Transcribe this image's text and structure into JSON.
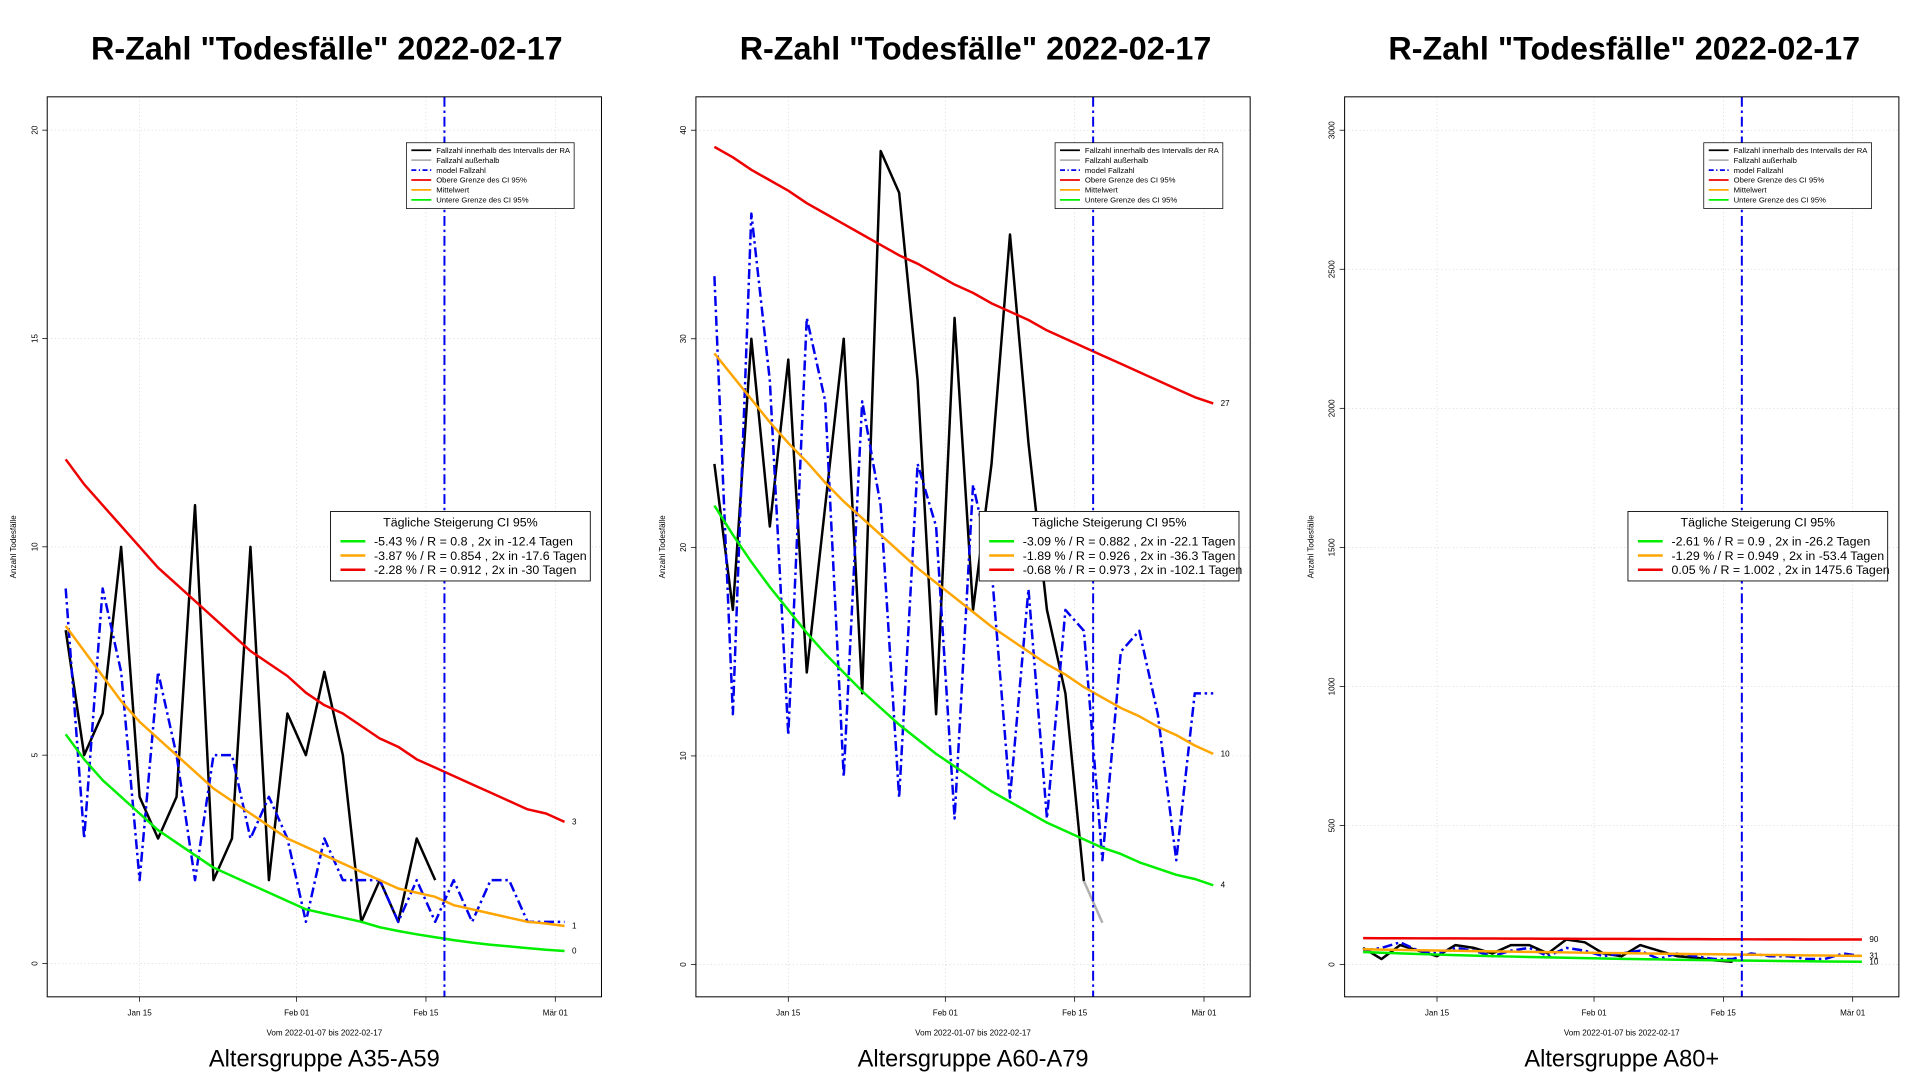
{
  "chart_data": [
    {
      "type": "line",
      "title": "R-Zahl \"Todesfälle\" 2022-02-17",
      "subtitle": "Altersgruppe A35-A59",
      "x_label": "Vom 2022-01-07 bis 2022-02-17",
      "y_label": "Anzahl Todesfälle",
      "x": [
        "2022-01-07",
        "2022-01-09",
        "2022-01-11",
        "2022-01-13",
        "2022-01-15",
        "2022-01-17",
        "2022-01-19",
        "2022-01-21",
        "2022-01-23",
        "2022-01-25",
        "2022-01-27",
        "2022-01-29",
        "2022-01-31",
        "2022-02-02",
        "2022-02-04",
        "2022-02-06",
        "2022-02-08",
        "2022-02-10",
        "2022-02-12",
        "2022-02-14",
        "2022-02-16",
        "2022-02-18",
        "2022-02-20",
        "2022-02-22",
        "2022-02-24",
        "2022-02-26",
        "2022-02-28",
        "2022-03-02"
      ],
      "xlim": [
        "2022-01-05",
        "2022-03-06"
      ],
      "xticks": [
        {
          "value": "2022-01-15",
          "label": "Jan 15"
        },
        {
          "value": "2022-02-01",
          "label": "Feb 01"
        },
        {
          "value": "2022-02-15",
          "label": "Feb 15"
        },
        {
          "value": "2022-03-01",
          "label": "Mär 01"
        }
      ],
      "ylim": [
        -0.8,
        20.8
      ],
      "yticks": [
        0,
        5,
        10,
        15,
        20
      ],
      "grid": true,
      "vline": "2022-02-17",
      "series": [
        {
          "name": "Fallzahl innerhalb des Intervalls der RA",
          "color": "#000000",
          "style": "solid",
          "values": [
            8,
            5,
            6,
            10,
            4,
            3,
            4,
            11,
            2,
            3,
            10,
            2,
            6,
            5,
            7,
            5,
            1,
            2,
            1,
            3,
            2,
            null,
            null,
            null,
            null,
            null,
            null,
            null
          ]
        },
        {
          "name": "Fallzahl außerhalb",
          "color": "#b0b0b0",
          "style": "solid",
          "values": [
            null,
            null,
            null,
            null,
            null,
            null,
            null,
            null,
            null,
            null,
            null,
            null,
            null,
            null,
            null,
            null,
            null,
            null,
            null,
            null,
            null,
            null,
            null,
            null,
            null,
            null,
            null,
            null
          ]
        },
        {
          "name": "model Fallzahl",
          "color": "#0000ee",
          "style": "dashdot",
          "values": [
            9,
            3,
            9,
            7,
            2,
            7,
            5,
            2,
            5,
            5,
            3,
            4,
            3,
            1,
            3,
            2,
            2,
            2,
            1,
            2,
            1,
            2,
            1,
            2,
            2,
            1,
            1,
            1
          ]
        },
        {
          "name": "Obere Grenze des CI 95%",
          "color": "#ee0000",
          "style": "solid",
          "end_label": "3",
          "values": [
            12.1,
            11.5,
            11.0,
            10.5,
            10.0,
            9.5,
            9.1,
            8.7,
            8.3,
            7.9,
            7.5,
            7.2,
            6.9,
            6.5,
            6.2,
            6.0,
            5.7,
            5.4,
            5.2,
            4.9,
            4.7,
            4.5,
            4.3,
            4.1,
            3.9,
            3.7,
            3.6,
            3.4
          ]
        },
        {
          "name": "Mittelwert",
          "color": "#ffa500",
          "style": "solid",
          "end_label": "1",
          "values": [
            8.1,
            7.5,
            6.9,
            6.3,
            5.8,
            5.4,
            5.0,
            4.6,
            4.2,
            3.9,
            3.6,
            3.3,
            3.0,
            2.8,
            2.6,
            2.4,
            2.2,
            2.0,
            1.8,
            1.7,
            1.6,
            1.4,
            1.3,
            1.2,
            1.1,
            1.0,
            0.96,
            0.9
          ]
        },
        {
          "name": "Untere Grenze des CI 95%",
          "color": "#00ee00",
          "style": "solid",
          "end_label": "0",
          "values": [
            5.5,
            4.9,
            4.4,
            4.0,
            3.6,
            3.2,
            2.9,
            2.6,
            2.3,
            2.1,
            1.9,
            1.7,
            1.5,
            1.3,
            1.2,
            1.1,
            1.0,
            0.87,
            0.78,
            0.7,
            0.63,
            0.56,
            0.5,
            0.45,
            0.41,
            0.37,
            0.33,
            0.3
          ]
        }
      ],
      "stats_title": "Tägliche Steigerung CI 95%",
      "stats": [
        {
          "text": "-5.43 % / R = 0.8 , 2x in -12.4 Tagen",
          "color": "#00ee00"
        },
        {
          "text": "-3.87 % / R = 0.854 , 2x in -17.6 Tagen",
          "color": "#ffa500"
        },
        {
          "text": "-2.28 % / R = 0.912 , 2x in -30 Tagen",
          "color": "#ee0000"
        }
      ]
    },
    {
      "type": "line",
      "title": "R-Zahl \"Todesfälle\" 2022-02-17",
      "subtitle": "Altersgruppe A60-A79",
      "x_label": "Vom 2022-01-07 bis 2022-02-17",
      "y_label": "Anzahl Todesfälle",
      "x": [
        "2022-01-07",
        "2022-01-09",
        "2022-01-11",
        "2022-01-13",
        "2022-01-15",
        "2022-01-17",
        "2022-01-19",
        "2022-01-21",
        "2022-01-23",
        "2022-01-25",
        "2022-01-27",
        "2022-01-29",
        "2022-01-31",
        "2022-02-02",
        "2022-02-04",
        "2022-02-06",
        "2022-02-08",
        "2022-02-10",
        "2022-02-12",
        "2022-02-14",
        "2022-02-16",
        "2022-02-18",
        "2022-02-20",
        "2022-02-22",
        "2022-02-24",
        "2022-02-26",
        "2022-02-28",
        "2022-03-02"
      ],
      "xlim": [
        "2022-01-05",
        "2022-03-06"
      ],
      "xticks": [
        {
          "value": "2022-01-15",
          "label": "Jan 15"
        },
        {
          "value": "2022-02-01",
          "label": "Feb 01"
        },
        {
          "value": "2022-02-15",
          "label": "Feb 15"
        },
        {
          "value": "2022-03-01",
          "label": "Mär 01"
        }
      ],
      "ylim": [
        -1.55,
        41.6
      ],
      "yticks": [
        0,
        10,
        20,
        30,
        40
      ],
      "grid": true,
      "vline": "2022-02-17",
      "series": [
        {
          "name": "Fallzahl innerhalb des Intervalls der RA",
          "color": "#000000",
          "style": "solid",
          "values": [
            24,
            17,
            30,
            21,
            29,
            14,
            22,
            30,
            13,
            39,
            37,
            28,
            12,
            31,
            17,
            24,
            35,
            25,
            17,
            13,
            4,
            null,
            null,
            null,
            null,
            null,
            null,
            null
          ]
        },
        {
          "name": "Fallzahl außerhalb",
          "color": "#b0b0b0",
          "style": "solid",
          "values": [
            null,
            null,
            null,
            null,
            null,
            null,
            null,
            null,
            null,
            null,
            null,
            null,
            null,
            null,
            null,
            null,
            null,
            null,
            null,
            null,
            4,
            2,
            null,
            null,
            null,
            null,
            null,
            null
          ]
        },
        {
          "name": "model Fallzahl",
          "color": "#0000ee",
          "style": "dashdot",
          "values": [
            33,
            12,
            36,
            28,
            11,
            31,
            27,
            9,
            27,
            22,
            8,
            24,
            21,
            7,
            23,
            19,
            8,
            18,
            7,
            17,
            16,
            5,
            15,
            16,
            12,
            5,
            13,
            13
          ]
        },
        {
          "name": "Obere Grenze des CI 95%",
          "color": "#ee0000",
          "style": "solid",
          "end_label": "27",
          "values": [
            39.2,
            38.7,
            38.1,
            37.6,
            37.1,
            36.5,
            36.0,
            35.5,
            35.0,
            34.5,
            34.0,
            33.6,
            33.1,
            32.6,
            32.2,
            31.7,
            31.3,
            30.9,
            30.4,
            30.0,
            29.6,
            29.2,
            28.8,
            28.4,
            28.0,
            27.6,
            27.2,
            26.9
          ]
        },
        {
          "name": "Mittelwert",
          "color": "#ffa500",
          "style": "solid",
          "end_label": "10",
          "values": [
            29.3,
            28.2,
            27.1,
            26.0,
            25.0,
            24.1,
            23.1,
            22.2,
            21.4,
            20.6,
            19.8,
            19.0,
            18.3,
            17.6,
            16.9,
            16.2,
            15.6,
            15.0,
            14.4,
            13.9,
            13.3,
            12.8,
            12.3,
            11.9,
            11.4,
            11.0,
            10.5,
            10.1
          ]
        },
        {
          "name": "Untere Grenze des CI 95%",
          "color": "#00ee00",
          "style": "solid",
          "end_label": "4",
          "values": [
            22.0,
            20.6,
            19.3,
            18.1,
            17.0,
            15.9,
            14.9,
            14.0,
            13.1,
            12.3,
            11.5,
            10.8,
            10.1,
            9.5,
            8.9,
            8.3,
            7.8,
            7.3,
            6.8,
            6.4,
            6.0,
            5.6,
            5.3,
            4.9,
            4.6,
            4.3,
            4.1,
            3.8
          ]
        }
      ],
      "stats_title": "Tägliche Steigerung CI 95%",
      "stats": [
        {
          "text": "-3.09 % / R = 0.882 , 2x in -22.1 Tagen",
          "color": "#00ee00"
        },
        {
          "text": "-1.89 % / R = 0.926 , 2x in -36.3 Tagen",
          "color": "#ffa500"
        },
        {
          "text": "-0.68 % / R = 0.973 , 2x in -102.1 Tagen",
          "color": "#ee0000"
        }
      ]
    },
    {
      "type": "line",
      "title": "R-Zahl \"Todesfälle\" 2022-02-17",
      "subtitle": "Altersgruppe A80+",
      "x_label": "Vom 2022-01-07 bis 2022-02-17",
      "y_label": "Anzahl Todesfälle",
      "x": [
        "2022-01-07",
        "2022-01-09",
        "2022-01-11",
        "2022-01-13",
        "2022-01-15",
        "2022-01-17",
        "2022-01-19",
        "2022-01-21",
        "2022-01-23",
        "2022-01-25",
        "2022-01-27",
        "2022-01-29",
        "2022-01-31",
        "2022-02-02",
        "2022-02-04",
        "2022-02-06",
        "2022-02-08",
        "2022-02-10",
        "2022-02-12",
        "2022-02-14",
        "2022-02-16",
        "2022-02-18",
        "2022-02-20",
        "2022-02-22",
        "2022-02-24",
        "2022-02-26",
        "2022-02-28",
        "2022-03-02"
      ],
      "xlim": [
        "2022-01-05",
        "2022-03-06"
      ],
      "xticks": [
        {
          "value": "2022-01-15",
          "label": "Jan 15"
        },
        {
          "value": "2022-02-01",
          "label": "Feb 01"
        },
        {
          "value": "2022-02-15",
          "label": "Feb 15"
        },
        {
          "value": "2022-03-01",
          "label": "Mär 01"
        }
      ],
      "ylim": [
        -116,
        3120
      ],
      "yticks": [
        0,
        500,
        1000,
        1500,
        2000,
        2500,
        3000
      ],
      "grid": true,
      "vline": "2022-02-17",
      "series": [
        {
          "name": "Fallzahl innerhalb des Intervalls der RA",
          "color": "#000000",
          "style": "solid",
          "values": [
            60,
            20,
            70,
            50,
            30,
            70,
            60,
            40,
            70,
            70,
            40,
            90,
            80,
            40,
            30,
            70,
            50,
            30,
            25,
            15,
            10,
            null,
            null,
            null,
            null,
            null,
            null,
            null
          ]
        },
        {
          "name": "Fallzahl außerhalb",
          "color": "#b0b0b0",
          "style": "solid",
          "values": [
            null,
            null,
            null,
            null,
            null,
            null,
            null,
            null,
            null,
            null,
            null,
            null,
            null,
            null,
            null,
            null,
            null,
            null,
            null,
            null,
            null,
            null,
            null,
            null,
            null,
            null,
            null,
            null
          ]
        },
        {
          "name": "model Fallzahl",
          "color": "#0000ee",
          "style": "dashdot",
          "values": [
            50,
            60,
            80,
            50,
            40,
            60,
            50,
            30,
            50,
            60,
            30,
            60,
            50,
            30,
            40,
            50,
            20,
            40,
            30,
            20,
            20,
            40,
            30,
            30,
            20,
            20,
            40,
            30
          ]
        },
        {
          "name": "Obere Grenze des CI 95%",
          "color": "#ee0000",
          "style": "solid",
          "end_label": "90",
          "values": [
            95,
            94.8,
            94.6,
            94.4,
            94.2,
            94.0,
            93.8,
            93.6,
            93.4,
            93.2,
            93.0,
            92.8,
            92.6,
            92.4,
            92.2,
            92.0,
            91.8,
            91.6,
            91.4,
            91.2,
            91.0,
            90.8,
            90.6,
            90.4,
            90.2,
            90.1,
            90.0,
            90.0
          ]
        },
        {
          "name": "Mittelwert",
          "color": "#ffa500",
          "style": "solid",
          "end_label": "31",
          "values": [
            55,
            53.8,
            52.7,
            51.6,
            50.6,
            49.5,
            48.5,
            47.5,
            46.5,
            45.5,
            44.6,
            43.6,
            42.7,
            41.8,
            41.0,
            40.1,
            39.3,
            38.5,
            37.7,
            36.9,
            36.1,
            35.4,
            34.6,
            33.9,
            33.2,
            32.5,
            31.8,
            31.2
          ]
        },
        {
          "name": "Untere Grenze des CI 95%",
          "color": "#00ee00",
          "style": "solid",
          "end_label": "10",
          "values": [
            45,
            42.6,
            40.3,
            38.1,
            36.0,
            34.1,
            32.2,
            30.5,
            28.8,
            27.3,
            25.8,
            24.4,
            23.1,
            21.8,
            20.6,
            19.5,
            18.5,
            17.5,
            16.5,
            15.6,
            14.8,
            14.0,
            13.2,
            12.5,
            11.8,
            11.2,
            10.6,
            10.0
          ]
        }
      ],
      "stats_title": "Tägliche Steigerung CI 95%",
      "stats": [
        {
          "text": "-2.61 % / R = 0.9 , 2x in -26.2 Tagen",
          "color": "#00ee00"
        },
        {
          "text": "-1.29 % / R = 0.949 , 2x in -53.4 Tagen",
          "color": "#ffa500"
        },
        {
          "text": "0.05 % / R = 1.002 , 2x in 1475.6 Tagen",
          "color": "#ee0000"
        }
      ]
    }
  ]
}
